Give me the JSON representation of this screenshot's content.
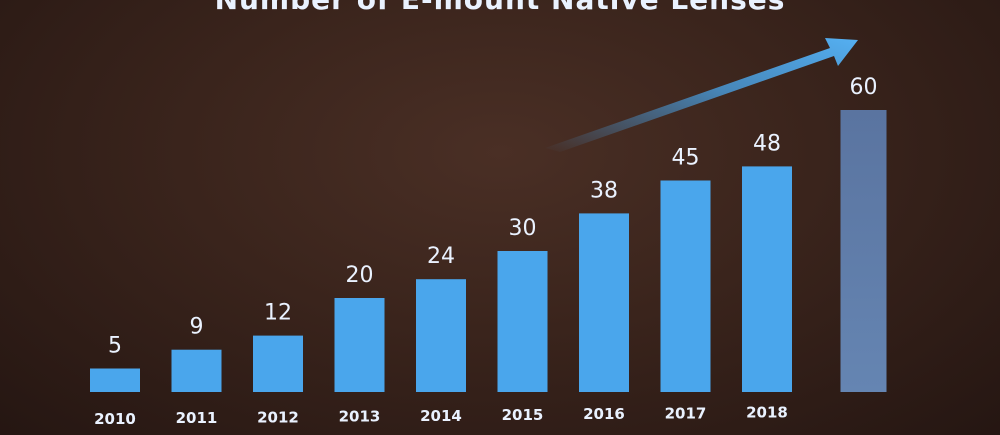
{
  "chart_data": {
    "type": "bar",
    "title": "Number of E-mount Native Lenses",
    "xlabel": "",
    "ylabel": "",
    "ylim": [
      0,
      60
    ],
    "grid": false,
    "legend": "none",
    "categories": [
      "2010",
      "2011",
      "2012",
      "2013",
      "2014",
      "2015",
      "2016",
      "2017",
      "2018",
      ""
    ],
    "values": [
      5,
      9,
      12,
      20,
      24,
      30,
      38,
      45,
      48,
      60
    ],
    "projected": [
      false,
      false,
      false,
      false,
      false,
      false,
      false,
      false,
      false,
      true
    ],
    "bar_color": "#4aa6ec",
    "projected_color": "#5f7da6",
    "label_color": "#eaf2ff"
  }
}
